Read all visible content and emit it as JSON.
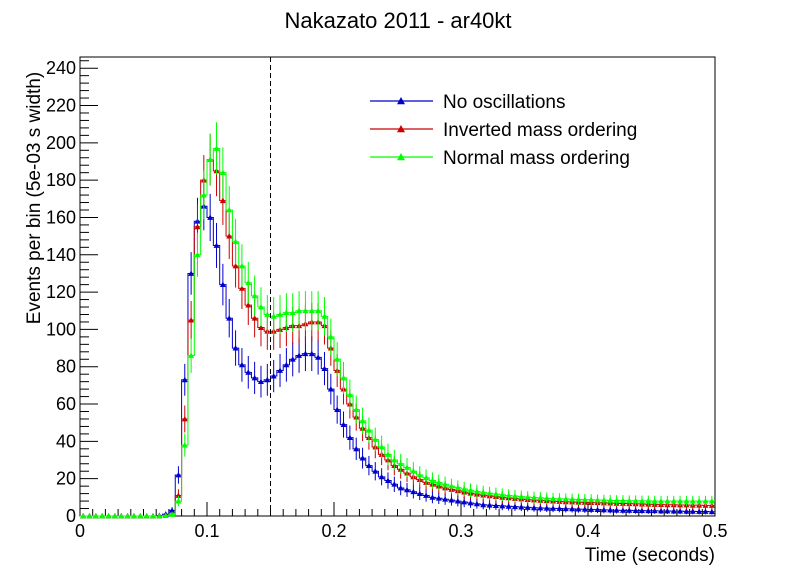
{
  "chart_data": {
    "type": "line",
    "title": "Nakazato 2011 - ar40kt",
    "xlabel": "Time (seconds)",
    "ylabel": "Events per bin (5e-03 s width)",
    "xlim": [
      0,
      0.5
    ],
    "ylim": [
      0,
      246
    ],
    "x_ticks": [
      "0",
      "0.1",
      "0.2",
      "0.3",
      "0.4",
      "0.5"
    ],
    "y_ticks": [
      "0",
      "20",
      "40",
      "60",
      "80",
      "100",
      "120",
      "140",
      "160",
      "180",
      "200",
      "220",
      "240"
    ],
    "bin_width": 0.005,
    "vertical_line_x": 0.15,
    "legend_position": "top-right",
    "grid": false,
    "series": [
      {
        "name": "No oscillations",
        "color": "#0000cc",
        "values": [
          0,
          0,
          0,
          0,
          0,
          0,
          0,
          0,
          0,
          0,
          0,
          0,
          0.3,
          1,
          3,
          22,
          73,
          130,
          158,
          166,
          160,
          145,
          124,
          106,
          90,
          81,
          77,
          74,
          72,
          73,
          75,
          78,
          81,
          84,
          86,
          87,
          87,
          85,
          79,
          68,
          57,
          49,
          42,
          36,
          31,
          27,
          24,
          21,
          19,
          17,
          15,
          14,
          13,
          12,
          11,
          10,
          9.5,
          9,
          8.5,
          8,
          7.5,
          7,
          6.5,
          6,
          5.8,
          5.6,
          5.4,
          5.2,
          5,
          4.8,
          4.6,
          4.4,
          4.3,
          4.2,
          4.1,
          4,
          3.9,
          3.8,
          3.7,
          3.6,
          3.5,
          3.4,
          3.3,
          3.2,
          3.1,
          3,
          3,
          2.9,
          2.9,
          2.8,
          2.8,
          2.7,
          2.7,
          2.6,
          2.6,
          2.5,
          2.5,
          2.4,
          2.4,
          2.3
        ]
      },
      {
        "name": "Inverted mass ordering",
        "color": "#cc0000",
        "values": [
          0,
          0,
          0,
          0,
          0,
          0,
          0,
          0,
          0,
          0,
          0,
          0,
          0,
          0.3,
          1,
          11,
          52,
          105,
          155,
          180,
          191,
          185,
          169,
          150,
          134,
          122,
          113,
          106,
          101,
          99,
          99,
          100,
          101,
          102,
          102,
          103,
          104,
          104,
          102,
          90,
          78,
          68,
          60,
          53,
          47,
          42,
          37,
          33,
          30,
          27,
          25,
          23,
          21,
          19.5,
          18,
          17,
          16,
          15,
          14.2,
          13.5,
          12.8,
          12.2,
          11.7,
          11.2,
          10.8,
          10.4,
          10,
          9.7,
          9.4,
          9.1,
          8.8,
          8.6,
          8.4,
          8.2,
          8,
          7.8,
          7.6,
          7.5,
          7.4,
          7.3,
          7.2,
          7.1,
          7,
          6.9,
          6.8,
          6.7,
          6.6,
          6.5,
          6.4,
          6.3,
          6.2,
          6.1,
          6,
          6,
          5.9,
          5.9,
          5.8,
          5.8,
          5.7,
          5.7
        ]
      },
      {
        "name": "Normal mass ordering",
        "color": "#00ff00",
        "values": [
          0,
          0,
          0,
          0,
          0,
          0,
          0,
          0,
          0,
          0,
          0,
          0,
          0,
          0.2,
          0.8,
          8,
          38,
          86,
          140,
          172,
          191,
          197,
          184,
          164,
          147,
          134,
          125,
          118,
          112,
          108,
          107,
          108,
          109,
          109,
          110,
          110,
          110,
          110,
          107,
          96,
          84,
          74,
          65,
          57,
          51,
          46,
          41,
          37,
          33,
          30,
          28,
          26,
          24,
          22,
          20.5,
          19,
          18,
          17,
          16,
          15.2,
          14.5,
          13.8,
          13.2,
          12.7,
          12.2,
          11.8,
          11.4,
          11,
          10.7,
          10.4,
          10.1,
          9.9,
          9.7,
          9.5,
          9.3,
          9.2,
          9.1,
          9,
          8.9,
          8.8,
          8.7,
          8.6,
          8.5,
          8.4,
          8.3,
          8.3,
          8.2,
          8.2,
          8.1,
          8.1,
          8,
          8,
          8,
          8,
          8,
          8,
          8,
          8,
          8,
          8
        ]
      }
    ]
  }
}
